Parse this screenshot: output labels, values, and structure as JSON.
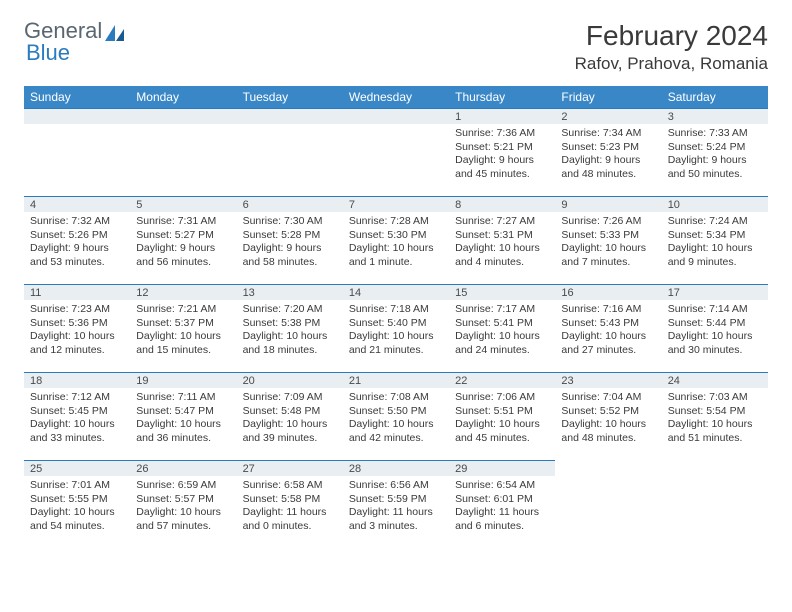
{
  "logo": {
    "general": "General",
    "blue": "Blue"
  },
  "title": "February 2024",
  "location": "Rafov, Prahova, Romania",
  "colors": {
    "header_bg": "#3a87c7",
    "header_text": "#ffffff",
    "numbar_bg": "#e9eef2",
    "divider": "#2b7bbf",
    "text": "#3a3a3a",
    "logo_gray": "#5a6670",
    "logo_blue": "#2b7bbf"
  },
  "weekdays": [
    "Sunday",
    "Monday",
    "Tuesday",
    "Wednesday",
    "Thursday",
    "Friday",
    "Saturday"
  ],
  "grid": [
    [
      null,
      null,
      null,
      null,
      {
        "n": "1",
        "sr": "Sunrise: 7:36 AM",
        "ss": "Sunset: 5:21 PM",
        "d1": "Daylight: 9 hours",
        "d2": "and 45 minutes."
      },
      {
        "n": "2",
        "sr": "Sunrise: 7:34 AM",
        "ss": "Sunset: 5:23 PM",
        "d1": "Daylight: 9 hours",
        "d2": "and 48 minutes."
      },
      {
        "n": "3",
        "sr": "Sunrise: 7:33 AM",
        "ss": "Sunset: 5:24 PM",
        "d1": "Daylight: 9 hours",
        "d2": "and 50 minutes."
      }
    ],
    [
      {
        "n": "4",
        "sr": "Sunrise: 7:32 AM",
        "ss": "Sunset: 5:26 PM",
        "d1": "Daylight: 9 hours",
        "d2": "and 53 minutes."
      },
      {
        "n": "5",
        "sr": "Sunrise: 7:31 AM",
        "ss": "Sunset: 5:27 PM",
        "d1": "Daylight: 9 hours",
        "d2": "and 56 minutes."
      },
      {
        "n": "6",
        "sr": "Sunrise: 7:30 AM",
        "ss": "Sunset: 5:28 PM",
        "d1": "Daylight: 9 hours",
        "d2": "and 58 minutes."
      },
      {
        "n": "7",
        "sr": "Sunrise: 7:28 AM",
        "ss": "Sunset: 5:30 PM",
        "d1": "Daylight: 10 hours",
        "d2": "and 1 minute."
      },
      {
        "n": "8",
        "sr": "Sunrise: 7:27 AM",
        "ss": "Sunset: 5:31 PM",
        "d1": "Daylight: 10 hours",
        "d2": "and 4 minutes."
      },
      {
        "n": "9",
        "sr": "Sunrise: 7:26 AM",
        "ss": "Sunset: 5:33 PM",
        "d1": "Daylight: 10 hours",
        "d2": "and 7 minutes."
      },
      {
        "n": "10",
        "sr": "Sunrise: 7:24 AM",
        "ss": "Sunset: 5:34 PM",
        "d1": "Daylight: 10 hours",
        "d2": "and 9 minutes."
      }
    ],
    [
      {
        "n": "11",
        "sr": "Sunrise: 7:23 AM",
        "ss": "Sunset: 5:36 PM",
        "d1": "Daylight: 10 hours",
        "d2": "and 12 minutes."
      },
      {
        "n": "12",
        "sr": "Sunrise: 7:21 AM",
        "ss": "Sunset: 5:37 PM",
        "d1": "Daylight: 10 hours",
        "d2": "and 15 minutes."
      },
      {
        "n": "13",
        "sr": "Sunrise: 7:20 AM",
        "ss": "Sunset: 5:38 PM",
        "d1": "Daylight: 10 hours",
        "d2": "and 18 minutes."
      },
      {
        "n": "14",
        "sr": "Sunrise: 7:18 AM",
        "ss": "Sunset: 5:40 PM",
        "d1": "Daylight: 10 hours",
        "d2": "and 21 minutes."
      },
      {
        "n": "15",
        "sr": "Sunrise: 7:17 AM",
        "ss": "Sunset: 5:41 PM",
        "d1": "Daylight: 10 hours",
        "d2": "and 24 minutes."
      },
      {
        "n": "16",
        "sr": "Sunrise: 7:16 AM",
        "ss": "Sunset: 5:43 PM",
        "d1": "Daylight: 10 hours",
        "d2": "and 27 minutes."
      },
      {
        "n": "17",
        "sr": "Sunrise: 7:14 AM",
        "ss": "Sunset: 5:44 PM",
        "d1": "Daylight: 10 hours",
        "d2": "and 30 minutes."
      }
    ],
    [
      {
        "n": "18",
        "sr": "Sunrise: 7:12 AM",
        "ss": "Sunset: 5:45 PM",
        "d1": "Daylight: 10 hours",
        "d2": "and 33 minutes."
      },
      {
        "n": "19",
        "sr": "Sunrise: 7:11 AM",
        "ss": "Sunset: 5:47 PM",
        "d1": "Daylight: 10 hours",
        "d2": "and 36 minutes."
      },
      {
        "n": "20",
        "sr": "Sunrise: 7:09 AM",
        "ss": "Sunset: 5:48 PM",
        "d1": "Daylight: 10 hours",
        "d2": "and 39 minutes."
      },
      {
        "n": "21",
        "sr": "Sunrise: 7:08 AM",
        "ss": "Sunset: 5:50 PM",
        "d1": "Daylight: 10 hours",
        "d2": "and 42 minutes."
      },
      {
        "n": "22",
        "sr": "Sunrise: 7:06 AM",
        "ss": "Sunset: 5:51 PM",
        "d1": "Daylight: 10 hours",
        "d2": "and 45 minutes."
      },
      {
        "n": "23",
        "sr": "Sunrise: 7:04 AM",
        "ss": "Sunset: 5:52 PM",
        "d1": "Daylight: 10 hours",
        "d2": "and 48 minutes."
      },
      {
        "n": "24",
        "sr": "Sunrise: 7:03 AM",
        "ss": "Sunset: 5:54 PM",
        "d1": "Daylight: 10 hours",
        "d2": "and 51 minutes."
      }
    ],
    [
      {
        "n": "25",
        "sr": "Sunrise: 7:01 AM",
        "ss": "Sunset: 5:55 PM",
        "d1": "Daylight: 10 hours",
        "d2": "and 54 minutes."
      },
      {
        "n": "26",
        "sr": "Sunrise: 6:59 AM",
        "ss": "Sunset: 5:57 PM",
        "d1": "Daylight: 10 hours",
        "d2": "and 57 minutes."
      },
      {
        "n": "27",
        "sr": "Sunrise: 6:58 AM",
        "ss": "Sunset: 5:58 PM",
        "d1": "Daylight: 11 hours",
        "d2": "and 0 minutes."
      },
      {
        "n": "28",
        "sr": "Sunrise: 6:56 AM",
        "ss": "Sunset: 5:59 PM",
        "d1": "Daylight: 11 hours",
        "d2": "and 3 minutes."
      },
      {
        "n": "29",
        "sr": "Sunrise: 6:54 AM",
        "ss": "Sunset: 6:01 PM",
        "d1": "Daylight: 11 hours",
        "d2": "and 6 minutes."
      },
      null,
      null
    ]
  ]
}
